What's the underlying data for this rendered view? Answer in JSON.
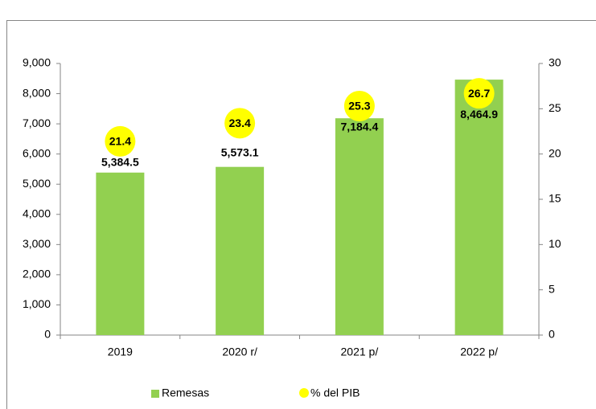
{
  "chart_data": {
    "type": "bar",
    "categories": [
      "2019",
      "2020 r/",
      "2021 p/",
      "2022 p/"
    ],
    "series": [
      {
        "name": "Remesas",
        "color": "#92d050",
        "values": [
          5384.5,
          5573.1,
          7184.4,
          8464.9
        ],
        "value_labels": [
          "5,384.5",
          "5,573.1",
          "7,184.4",
          "8,464.9"
        ]
      },
      {
        "name": "% del PIB",
        "color": "#ffff00",
        "axis": "y2",
        "type": "scatter",
        "values": [
          21.4,
          23.4,
          25.3,
          26.7
        ]
      }
    ],
    "ylim": [
      0,
      9000
    ],
    "yticks": [
      0,
      {
        "value": 1000,
        "label": "1,000"
      },
      {
        "value": 2000,
        "label": "2,000"
      },
      {
        "value": 3000,
        "label": "3,000"
      },
      {
        "value": 4000,
        "label": "4,000"
      },
      {
        "value": 5000,
        "label": "5,000"
      },
      {
        "value": 6000,
        "label": "6,000"
      },
      {
        "value": 7000,
        "label": "7,000"
      },
      {
        "value": 8000,
        "label": "8,000"
      },
      {
        "value": 9000,
        "label": "9,000"
      }
    ],
    "y2lim": [
      0,
      30
    ],
    "y2ticks": [
      0,
      5,
      10,
      15,
      20,
      25,
      30
    ],
    "grid": false,
    "legend": "bottom"
  }
}
